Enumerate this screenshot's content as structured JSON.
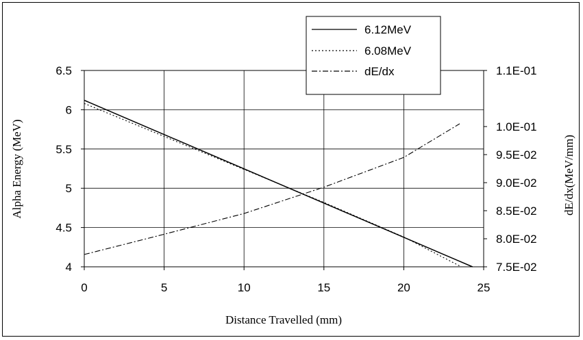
{
  "chart_data": {
    "type": "line",
    "xlabel": "Distance Travelled (mm)",
    "ylabel": "Alpha Energy (MeV)",
    "y2label": "dE/dx(MeV/mm)",
    "xlim": [
      0,
      25
    ],
    "ylim": [
      4,
      6.5
    ],
    "y2lim": [
      0.075,
      0.11
    ],
    "x_ticks": [
      0,
      5,
      10,
      15,
      20,
      25
    ],
    "y_ticks": [
      4,
      4.5,
      5,
      5.5,
      6,
      6.5
    ],
    "y2_ticks": [
      "1.1E-01",
      "1.0E-01",
      "9.5E-02",
      "9.0E-02",
      "8.5E-02",
      "8.0E-02",
      "7.5E-02"
    ],
    "y2_tick_values": [
      0.11,
      0.1,
      0.095,
      0.09,
      0.085,
      0.08,
      0.075
    ],
    "grid": true,
    "legend_position": "top-center",
    "series": [
      {
        "name": "6.12MeV",
        "axis": "left",
        "style": "solid",
        "color": "#000000",
        "x": [
          0,
          24.3
        ],
        "y": [
          6.12,
          4.0
        ]
      },
      {
        "name": "6.08MeV",
        "axis": "left",
        "style": "dotted",
        "color": "#000000",
        "x": [
          0,
          5,
          10,
          15,
          20,
          23.6
        ],
        "y": [
          6.08,
          5.66,
          5.24,
          4.82,
          4.38,
          4.0
        ]
      },
      {
        "name": "dE/dx",
        "axis": "right",
        "style": "dashdot",
        "color": "#000000",
        "x": [
          0,
          5,
          10,
          15,
          20,
          23.5
        ],
        "y": [
          0.0772,
          0.0808,
          0.0845,
          0.0892,
          0.0945,
          0.1005
        ]
      }
    ]
  }
}
